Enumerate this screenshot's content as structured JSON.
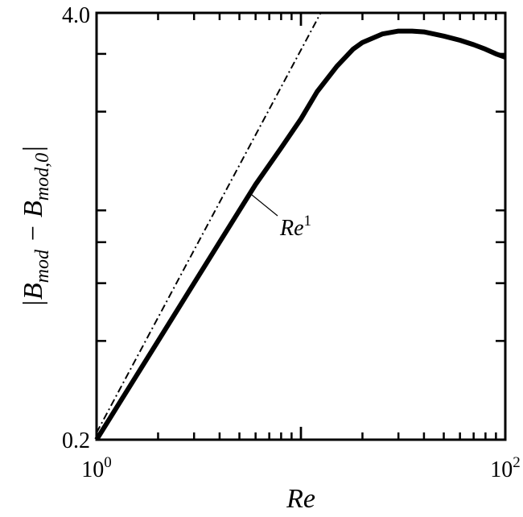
{
  "chart_data": {
    "type": "line",
    "xscale": "log",
    "yscale": "log",
    "xlim": [
      1,
      100
    ],
    "ylim": [
      0.2,
      4.0
    ],
    "xlabel": "Re",
    "ylabel": {
      "prefix": "|B",
      "sub1": "mod",
      "middle": " − B",
      "sub2": "mod,0",
      "suffix": "|"
    },
    "x_tick_labels": [
      {
        "value": 1,
        "base": "10",
        "exp": "0"
      },
      {
        "value": 100,
        "base": "10",
        "exp": "2"
      }
    ],
    "y_tick_labels": [
      {
        "value": 0.2,
        "label": "0.2"
      },
      {
        "value": 4.0,
        "label": "4.0"
      }
    ],
    "series": [
      {
        "style": "solid-thick",
        "x": [
          1,
          1.5,
          2,
          3,
          4,
          5,
          6,
          8,
          10,
          12,
          15,
          18,
          20,
          25,
          30,
          35,
          40,
          50,
          60,
          70,
          80,
          90,
          100
        ],
        "y": [
          0.2,
          0.3,
          0.4,
          0.6,
          0.8,
          1.0,
          1.2,
          1.55,
          1.9,
          2.3,
          2.75,
          3.1,
          3.25,
          3.45,
          3.52,
          3.52,
          3.5,
          3.4,
          3.3,
          3.2,
          3.1,
          3.0,
          2.93
        ]
      },
      {
        "style": "dash-dot",
        "x": [
          1,
          12.5
        ],
        "y": [
          0.21,
          4.0
        ]
      }
    ],
    "annotation": {
      "base": "Re",
      "exp": "1",
      "x": 4.5,
      "y": 0.82
    },
    "grid": false,
    "legend": "none"
  }
}
